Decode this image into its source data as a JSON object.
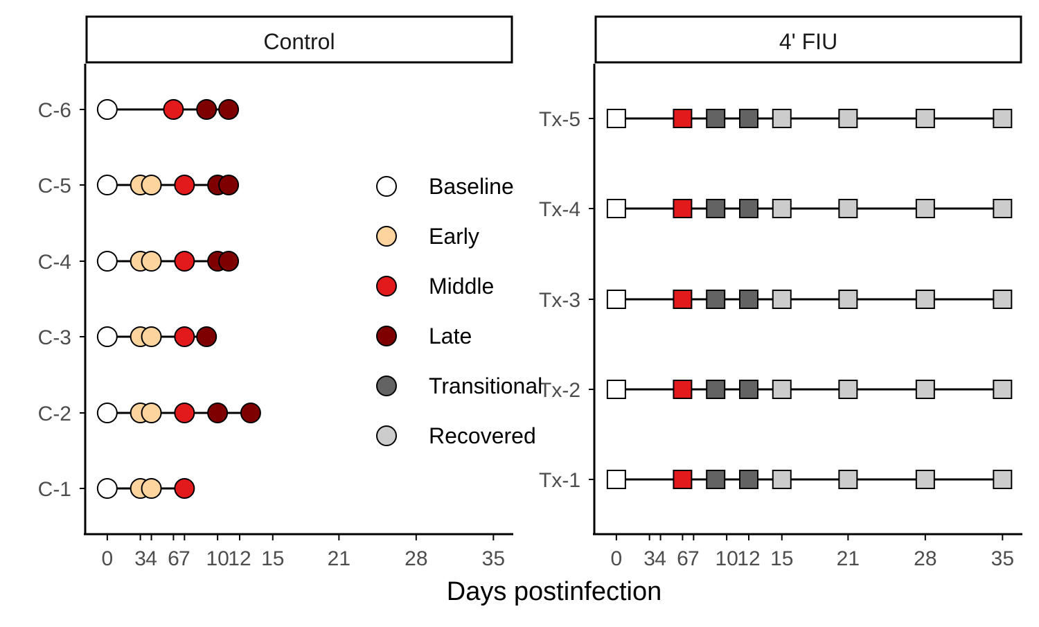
{
  "chart_data": {
    "type": "timeline",
    "xlabel": "Days postinfection",
    "x_ticks": [
      0,
      3,
      4,
      6,
      7,
      10,
      12,
      15,
      21,
      28,
      35
    ],
    "x_tick_labels": [
      "0",
      "3",
      "4",
      "6",
      "7",
      "10",
      "12",
      "15",
      "21",
      "28",
      "35"
    ],
    "xlim": [
      -2,
      36.8
    ],
    "legend": {
      "position": "inside-left-panel-right",
      "entries": [
        {
          "label": "Baseline",
          "color": "#ffffff"
        },
        {
          "label": "Early",
          "color": "#fdd49e"
        },
        {
          "label": "Middle",
          "color": "#e31a1c"
        },
        {
          "label": "Late",
          "color": "#7f0000"
        },
        {
          "label": "Transitional",
          "color": "#636363"
        },
        {
          "label": "Recovered",
          "color": "#cccccc"
        }
      ]
    },
    "panels": [
      {
        "title": "Control",
        "shape": "circle",
        "subjects": [
          {
            "label": "C-6",
            "points": [
              [
                0,
                "Baseline"
              ],
              [
                6,
                "Middle"
              ],
              [
                9,
                "Late"
              ],
              [
                11,
                "Late"
              ]
            ]
          },
          {
            "label": "C-5",
            "points": [
              [
                0,
                "Baseline"
              ],
              [
                3,
                "Early"
              ],
              [
                4,
                "Early"
              ],
              [
                7,
                "Middle"
              ],
              [
                10,
                "Late"
              ],
              [
                11,
                "Late"
              ]
            ]
          },
          {
            "label": "C-4",
            "points": [
              [
                0,
                "Baseline"
              ],
              [
                3,
                "Early"
              ],
              [
                4,
                "Early"
              ],
              [
                7,
                "Middle"
              ],
              [
                10,
                "Late"
              ],
              [
                11,
                "Late"
              ]
            ]
          },
          {
            "label": "C-3",
            "points": [
              [
                0,
                "Baseline"
              ],
              [
                3,
                "Early"
              ],
              [
                4,
                "Early"
              ],
              [
                7,
                "Middle"
              ],
              [
                9,
                "Late"
              ]
            ]
          },
          {
            "label": "C-2",
            "points": [
              [
                0,
                "Baseline"
              ],
              [
                3,
                "Early"
              ],
              [
                4,
                "Early"
              ],
              [
                7,
                "Middle"
              ],
              [
                10,
                "Late"
              ],
              [
                13,
                "Late"
              ]
            ]
          },
          {
            "label": "C-1",
            "points": [
              [
                0,
                "Baseline"
              ],
              [
                3,
                "Early"
              ],
              [
                4,
                "Early"
              ],
              [
                7,
                "Middle"
              ]
            ]
          }
        ]
      },
      {
        "title": "4' FIU",
        "shape": "square",
        "subjects": [
          {
            "label": "Tx-5",
            "points": [
              [
                0,
                "Baseline"
              ],
              [
                6,
                "Middle"
              ],
              [
                9,
                "Transitional"
              ],
              [
                12,
                "Transitional"
              ],
              [
                15,
                "Recovered"
              ],
              [
                21,
                "Recovered"
              ],
              [
                28,
                "Recovered"
              ],
              [
                35,
                "Recovered"
              ]
            ]
          },
          {
            "label": "Tx-4",
            "points": [
              [
                0,
                "Baseline"
              ],
              [
                6,
                "Middle"
              ],
              [
                9,
                "Transitional"
              ],
              [
                12,
                "Transitional"
              ],
              [
                15,
                "Recovered"
              ],
              [
                21,
                "Recovered"
              ],
              [
                28,
                "Recovered"
              ],
              [
                35,
                "Recovered"
              ]
            ]
          },
          {
            "label": "Tx-3",
            "points": [
              [
                0,
                "Baseline"
              ],
              [
                6,
                "Middle"
              ],
              [
                9,
                "Transitional"
              ],
              [
                12,
                "Transitional"
              ],
              [
                15,
                "Recovered"
              ],
              [
                21,
                "Recovered"
              ],
              [
                28,
                "Recovered"
              ],
              [
                35,
                "Recovered"
              ]
            ]
          },
          {
            "label": "Tx-2",
            "points": [
              [
                0,
                "Baseline"
              ],
              [
                6,
                "Middle"
              ],
              [
                9,
                "Transitional"
              ],
              [
                12,
                "Transitional"
              ],
              [
                15,
                "Recovered"
              ],
              [
                21,
                "Recovered"
              ],
              [
                28,
                "Recovered"
              ],
              [
                35,
                "Recovered"
              ]
            ]
          },
          {
            "label": "Tx-1",
            "points": [
              [
                0,
                "Baseline"
              ],
              [
                6,
                "Middle"
              ],
              [
                9,
                "Transitional"
              ],
              [
                12,
                "Transitional"
              ],
              [
                15,
                "Recovered"
              ],
              [
                21,
                "Recovered"
              ],
              [
                28,
                "Recovered"
              ],
              [
                35,
                "Recovered"
              ]
            ]
          }
        ]
      }
    ]
  }
}
